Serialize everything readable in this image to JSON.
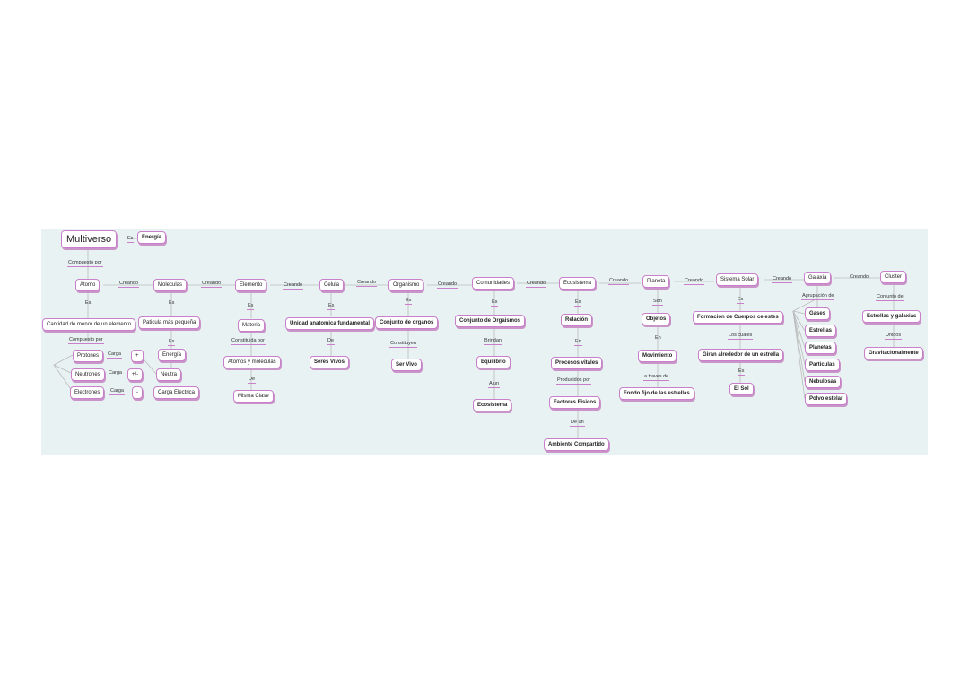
{
  "root": "Multiverso",
  "root_link": "Es",
  "root_def": "Energía",
  "chain_labels": {
    "compuesto_por": "Compuesto por",
    "creando": "Creando",
    "es": "Es"
  },
  "atomo": {
    "title": "Atomo",
    "def": "Cantidad de menor de un elemento",
    "compuesto": "Compuesto por",
    "protones": "Protones",
    "neutrones": "Neutrones",
    "electrones": "Electrones",
    "carga": "Carga",
    "plus": "+",
    "pm": "+/-",
    "minus": "-"
  },
  "moleculas": {
    "title": "Moleculas",
    "def": "Paticula más pequeña",
    "energia": "Energía",
    "neutra": "Neutra",
    "carga_electrica": "Carga Electrica"
  },
  "elemento": {
    "title": "Elemento",
    "def": "Materia",
    "constituida": "Constituida por",
    "atomos": "Atomos y moleculas",
    "de": "De",
    "misma_clase": "Misma Clase"
  },
  "celula": {
    "title": "Celula",
    "def": "Unidad anatomica fundamental",
    "de": "De",
    "seres_vivos": "Seres Vivos"
  },
  "organismo": {
    "title": "Organismo",
    "def": "Conjunto de organos",
    "constituyen": "Constituyen",
    "ser_vivo": "Ser Vivo"
  },
  "comunidades": {
    "title": "Comunidades",
    "def": "Conjunto de Orgaismos",
    "brindan": "Brindan",
    "equilibrio": "Equilibrio",
    "a_un": "A un",
    "ecosistema": "Ecosistema"
  },
  "ecosistema": {
    "title": "Ecosistema",
    "def": "Relación",
    "en": "En",
    "procesos": "Procesos vitales",
    "producidos": "Producidos por",
    "factores": "Factores Fisicos",
    "de_un": "De un",
    "ambiente": "Ambiente Compartido"
  },
  "planeta": {
    "title": "Planeta",
    "son": "Son",
    "def": "Objetos",
    "en": "En",
    "movimiento": "Movimiento",
    "a_traves": "a traves de",
    "fondo": "Fondo fijo de las estrellas"
  },
  "sistema_solar": {
    "title": "Sistema Solar",
    "def": "Formación de Cuerpos celestes",
    "los_cuales": "Los cuales",
    "giran": "Giran alrededor de un estrella",
    "sol": "El Sol"
  },
  "galaxia": {
    "title": "Galaxia",
    "agrupacion": "Agrupación de",
    "items": [
      "Gases",
      "Estrellas",
      "Planetas",
      "Particulas",
      "Nebulosas",
      "Polvo estelar"
    ]
  },
  "cluster": {
    "title": "Cluster",
    "conjunto": "Conjunto de",
    "def": "Estrellas y galaxias",
    "unidos": "Unidos",
    "grav": "Gravitacionalmente"
  }
}
